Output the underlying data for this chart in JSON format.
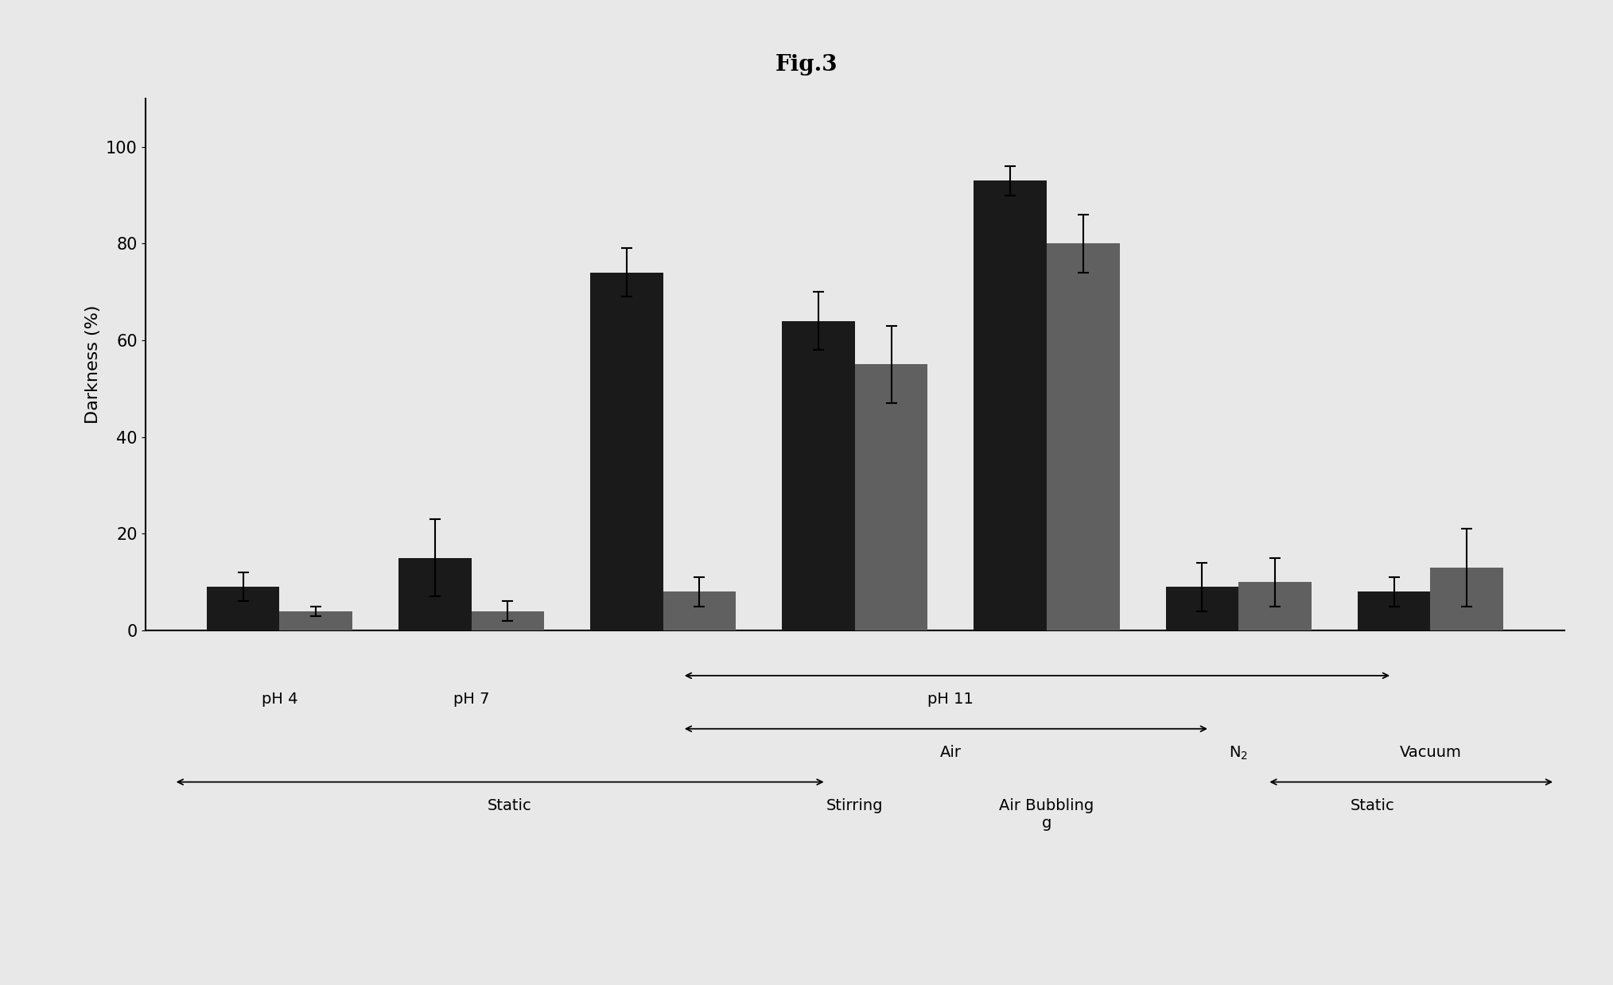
{
  "title": "Fig.3",
  "ylabel": "Darkness (%)",
  "ylim": [
    0,
    110
  ],
  "yticks": [
    0,
    20,
    40,
    60,
    80,
    100
  ],
  "bar1_values": [
    9,
    15,
    74,
    64,
    93,
    9,
    8
  ],
  "bar2_values": [
    4,
    4,
    8,
    55,
    80,
    10,
    13
  ],
  "bar1_errors": [
    3,
    8,
    5,
    6,
    3,
    5,
    3
  ],
  "bar2_errors": [
    1,
    2,
    3,
    8,
    6,
    5,
    8
  ],
  "bar1_color": "#1a1a1a",
  "bar2_color": "#606060",
  "bar_width": 0.38,
  "background_color": "#e8e8e8",
  "title_fontsize": 20,
  "axis_fontsize": 16,
  "tick_fontsize": 15,
  "annot_fontsize": 14
}
